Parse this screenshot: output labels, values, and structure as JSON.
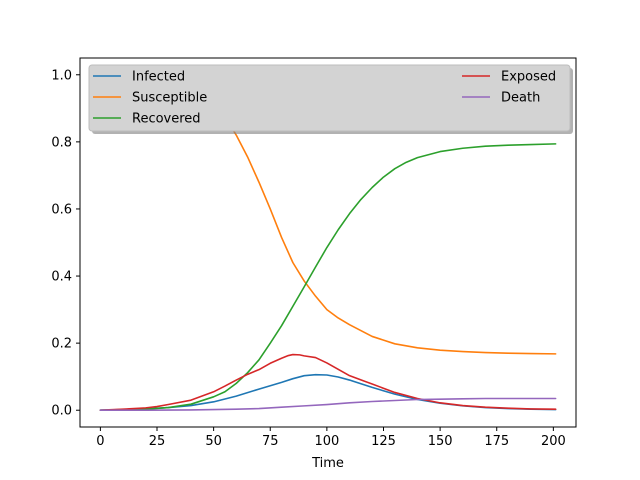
{
  "chart_data": {
    "type": "line",
    "title": "",
    "xlabel": "Time",
    "ylabel": "",
    "xlim": [
      -9,
      210
    ],
    "ylim": [
      -0.05,
      1.05
    ],
    "xticks": [
      0,
      25,
      50,
      75,
      100,
      125,
      150,
      175,
      200
    ],
    "yticks": [
      0.0,
      0.2,
      0.4,
      0.6,
      0.8,
      1.0
    ],
    "grid": false,
    "legend": {
      "placement": "top",
      "columns": 2,
      "shadow": true
    },
    "colors": {
      "infected": "#1f77b4",
      "susceptible": "#ff7f0e",
      "recovered": "#2ca02c",
      "exposed": "#d62728",
      "death": "#9467bd",
      "legend_bg": "#d3d3d3"
    },
    "series": [
      {
        "name": "Infected",
        "color": "#1f77b4",
        "x": [
          0,
          10,
          20,
          30,
          40,
          50,
          60,
          70,
          80,
          85,
          90,
          95,
          100,
          105,
          110,
          120,
          130,
          140,
          150,
          160,
          170,
          180,
          190,
          201
        ],
        "y": [
          0.0,
          0.002,
          0.004,
          0.008,
          0.014,
          0.025,
          0.042,
          0.063,
          0.083,
          0.094,
          0.103,
          0.106,
          0.105,
          0.099,
          0.09,
          0.068,
          0.048,
          0.032,
          0.021,
          0.013,
          0.008,
          0.005,
          0.003,
          0.002
        ]
      },
      {
        "name": "Susceptible",
        "color": "#ff7f0e",
        "x": [
          0,
          10,
          20,
          30,
          40,
          50,
          55,
          60,
          65,
          70,
          75,
          80,
          85,
          90,
          95,
          100,
          105,
          110,
          120,
          130,
          140,
          150,
          160,
          170,
          180,
          190,
          201
        ],
        "y": [
          1.0,
          0.998,
          0.99,
          0.975,
          0.95,
          0.905,
          0.875,
          0.82,
          0.755,
          0.68,
          0.6,
          0.515,
          0.44,
          0.385,
          0.34,
          0.3,
          0.275,
          0.255,
          0.22,
          0.198,
          0.186,
          0.179,
          0.175,
          0.172,
          0.17,
          0.169,
          0.168
        ]
      },
      {
        "name": "Recovered",
        "color": "#2ca02c",
        "x": [
          0,
          10,
          20,
          30,
          40,
          50,
          55,
          60,
          65,
          70,
          75,
          80,
          85,
          90,
          95,
          100,
          105,
          110,
          115,
          120,
          125,
          130,
          135,
          140,
          150,
          160,
          170,
          180,
          190,
          201
        ],
        "y": [
          0.0,
          0.001,
          0.003,
          0.008,
          0.018,
          0.04,
          0.055,
          0.08,
          0.112,
          0.15,
          0.2,
          0.252,
          0.31,
          0.368,
          0.427,
          0.485,
          0.538,
          0.586,
          0.628,
          0.664,
          0.695,
          0.72,
          0.739,
          0.753,
          0.771,
          0.781,
          0.787,
          0.79,
          0.792,
          0.794
        ]
      },
      {
        "name": "Exposed",
        "color": "#d62728",
        "x": [
          0,
          10,
          20,
          25,
          30,
          40,
          50,
          55,
          60,
          65,
          70,
          75,
          80,
          83,
          85,
          88,
          90,
          95,
          100,
          105,
          110,
          120,
          130,
          140,
          150,
          160,
          170,
          180,
          190,
          201
        ],
        "y": [
          0.0,
          0.003,
          0.007,
          0.011,
          0.017,
          0.03,
          0.055,
          0.072,
          0.09,
          0.107,
          0.121,
          0.14,
          0.155,
          0.163,
          0.166,
          0.165,
          0.162,
          0.157,
          0.141,
          0.122,
          0.103,
          0.078,
          0.053,
          0.035,
          0.022,
          0.014,
          0.009,
          0.006,
          0.004,
          0.003
        ]
      },
      {
        "name": "Death",
        "color": "#9467bd",
        "x": [
          0,
          20,
          40,
          60,
          70,
          80,
          90,
          100,
          110,
          120,
          130,
          140,
          150,
          160,
          170,
          180,
          190,
          201
        ],
        "y": [
          0.0,
          0.0,
          0.001,
          0.003,
          0.005,
          0.009,
          0.013,
          0.017,
          0.022,
          0.026,
          0.029,
          0.032,
          0.033,
          0.034,
          0.035,
          0.035,
          0.035,
          0.035
        ]
      }
    ]
  }
}
